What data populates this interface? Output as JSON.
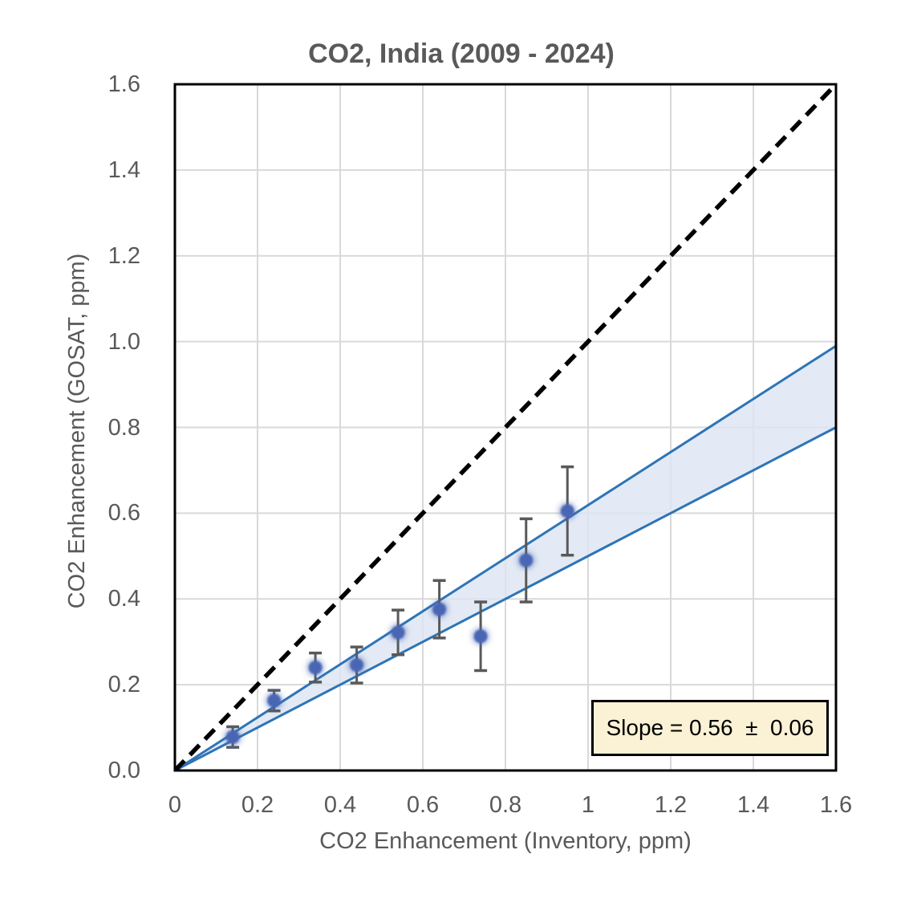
{
  "chart_data": {
    "type": "scatter",
    "title": "CO2, India (2009 - 2024)",
    "xlabel": "CO2 Enhancement (Inventory, ppm)",
    "ylabel": "CO2 Enhancement (GOSAT, ppm)",
    "xlim": [
      0,
      1.6
    ],
    "ylim": [
      0,
      1.6
    ],
    "xtick_values": [
      0,
      0.2,
      0.4,
      0.6,
      0.8,
      1.0,
      1.2,
      1.4,
      1.6
    ],
    "xtick_labels": [
      "0",
      "0.2",
      "0.4",
      "0.6",
      "0.8",
      "1",
      "1.2",
      "1.4",
      "1.6"
    ],
    "ytick_values": [
      0,
      0.2,
      0.4,
      0.6,
      0.8,
      1.0,
      1.2,
      1.4,
      1.6
    ],
    "ytick_labels": [
      "0.0",
      "0.2",
      "0.4",
      "0.6",
      "0.8",
      "1.0",
      "1.2",
      "1.4",
      "1.6"
    ],
    "grid": true,
    "legend_position": "none",
    "points": {
      "x": [
        0.14,
        0.24,
        0.34,
        0.44,
        0.54,
        0.64,
        0.74,
        0.85,
        0.95
      ],
      "y": [
        0.078,
        0.163,
        0.24,
        0.246,
        0.322,
        0.376,
        0.313,
        0.49,
        0.605
      ],
      "yerr": [
        0.024,
        0.024,
        0.034,
        0.042,
        0.052,
        0.067,
        0.08,
        0.097,
        0.103
      ]
    },
    "identity_line": {
      "style": "dashed",
      "from": [
        0,
        0
      ],
      "to": [
        1.6,
        1.6
      ]
    },
    "fit_band": {
      "origin": [
        0,
        0
      ],
      "x_end": 1.6,
      "upper_y_end": 0.99,
      "lower_y_end": 0.8,
      "slope": 0.56,
      "slope_uncertainty": 0.06
    },
    "annotation": {
      "text": "Slope = 0.56  ±  0.06"
    },
    "colors": {
      "marker": "#4966B4",
      "error_bar": "#595959",
      "band_fill": "#DCE5F3",
      "band_line": "#2E74B6",
      "identity_line": "#000000",
      "grid_line": "#D9D9D9",
      "axis_border": "#000000",
      "text": "#595959",
      "annotation_bg": "#FBF1D4",
      "annotation_border": "#000000",
      "annotation_text": "#000000"
    }
  }
}
